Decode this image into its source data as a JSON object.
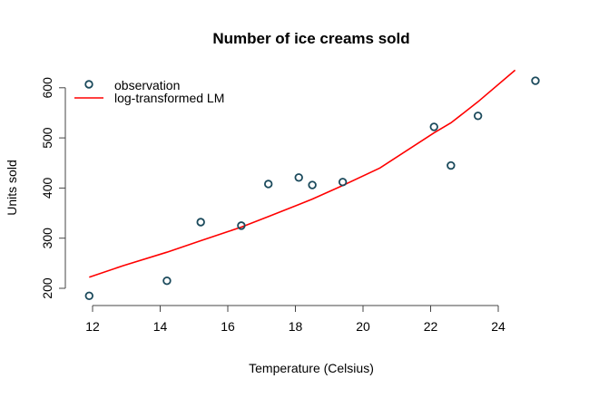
{
  "chart_data": {
    "type": "scatter",
    "title": "Number of ice creams sold",
    "xlabel": "Temperature (Celsius)",
    "ylabel": "Units sold",
    "xlim": [
      11.5,
      25.5
    ],
    "ylim": [
      170,
      640
    ],
    "x_ticks": [
      12,
      14,
      16,
      18,
      20,
      22,
      24
    ],
    "y_ticks": [
      200,
      300,
      400,
      500,
      600
    ],
    "grid": false,
    "legend_position": "top-left",
    "series": [
      {
        "name": "observation",
        "kind": "points",
        "color": "#1b4a5c",
        "points": [
          {
            "x": 11.9,
            "y": 185
          },
          {
            "x": 14.2,
            "y": 215
          },
          {
            "x": 15.2,
            "y": 332
          },
          {
            "x": 16.4,
            "y": 325
          },
          {
            "x": 17.2,
            "y": 408
          },
          {
            "x": 18.1,
            "y": 421
          },
          {
            "x": 18.5,
            "y": 406
          },
          {
            "x": 19.4,
            "y": 412
          },
          {
            "x": 22.1,
            "y": 522
          },
          {
            "x": 22.6,
            "y": 445
          },
          {
            "x": 23.4,
            "y": 544
          },
          {
            "x": 25.1,
            "y": 614
          }
        ]
      },
      {
        "name": "log-transformed LM",
        "kind": "line",
        "color": "#ff0000",
        "points": [
          {
            "x": 11.9,
            "y": 222
          },
          {
            "x": 12.9,
            "y": 245
          },
          {
            "x": 14.2,
            "y": 272
          },
          {
            "x": 15.2,
            "y": 295
          },
          {
            "x": 16.4,
            "y": 322
          },
          {
            "x": 17.2,
            "y": 343
          },
          {
            "x": 18.1,
            "y": 367
          },
          {
            "x": 18.5,
            "y": 378
          },
          {
            "x": 19.4,
            "y": 405
          },
          {
            "x": 20.5,
            "y": 440
          },
          {
            "x": 22.1,
            "y": 510
          },
          {
            "x": 22.6,
            "y": 530
          },
          {
            "x": 23.4,
            "y": 572
          },
          {
            "x": 24.5,
            "y": 635
          }
        ]
      }
    ]
  }
}
